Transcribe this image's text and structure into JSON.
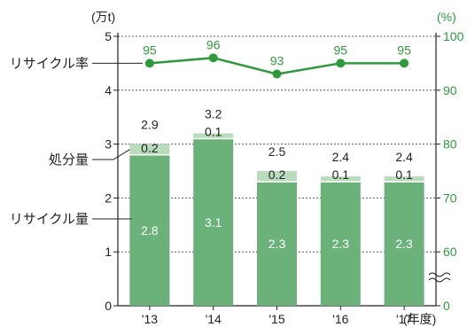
{
  "chart_data": {
    "type": "bar+line",
    "categories": [
      "'13",
      "'14",
      "'15",
      "'16",
      "'17"
    ],
    "x_unit_suffix": "(年度)",
    "left_axis": {
      "unit": "(万t)",
      "ticks": [
        "0",
        "1",
        "2",
        "3",
        "4",
        "5"
      ],
      "ylim": [
        0,
        5
      ]
    },
    "right_axis": {
      "unit": "(%)",
      "ticks": [
        "0",
        "60",
        "70",
        "80",
        "90",
        "100"
      ],
      "ylim": [
        0,
        100
      ],
      "broken_below": 60
    },
    "series": [
      {
        "name": "リサイクル量",
        "type": "bar",
        "axis": "left",
        "values": [
          2.8,
          3.1,
          2.3,
          2.3,
          2.3
        ],
        "labels": [
          "2.8",
          "3.1",
          "2.3",
          "2.3",
          "2.3"
        ],
        "color": "#6bb27a"
      },
      {
        "name": "処分量",
        "type": "bar",
        "axis": "left",
        "stacked": true,
        "values": [
          0.2,
          0.1,
          0.2,
          0.1,
          0.1
        ],
        "labels": [
          "0.2",
          "0.1",
          "0.2",
          "0.1",
          "0.1"
        ],
        "color": "#b9dcbd"
      },
      {
        "name": "リサイクル率",
        "type": "line",
        "axis": "right",
        "values": [
          95,
          96,
          93,
          95,
          95
        ],
        "labels": [
          "95",
          "96",
          "93",
          "95",
          "95"
        ],
        "color": "#2e9a3d"
      }
    ],
    "totals": [
      "2.9",
      "3.2",
      "2.5",
      "2.4",
      "2.4"
    ],
    "grid": "dashed horizontal",
    "legend": "left-side callouts"
  }
}
